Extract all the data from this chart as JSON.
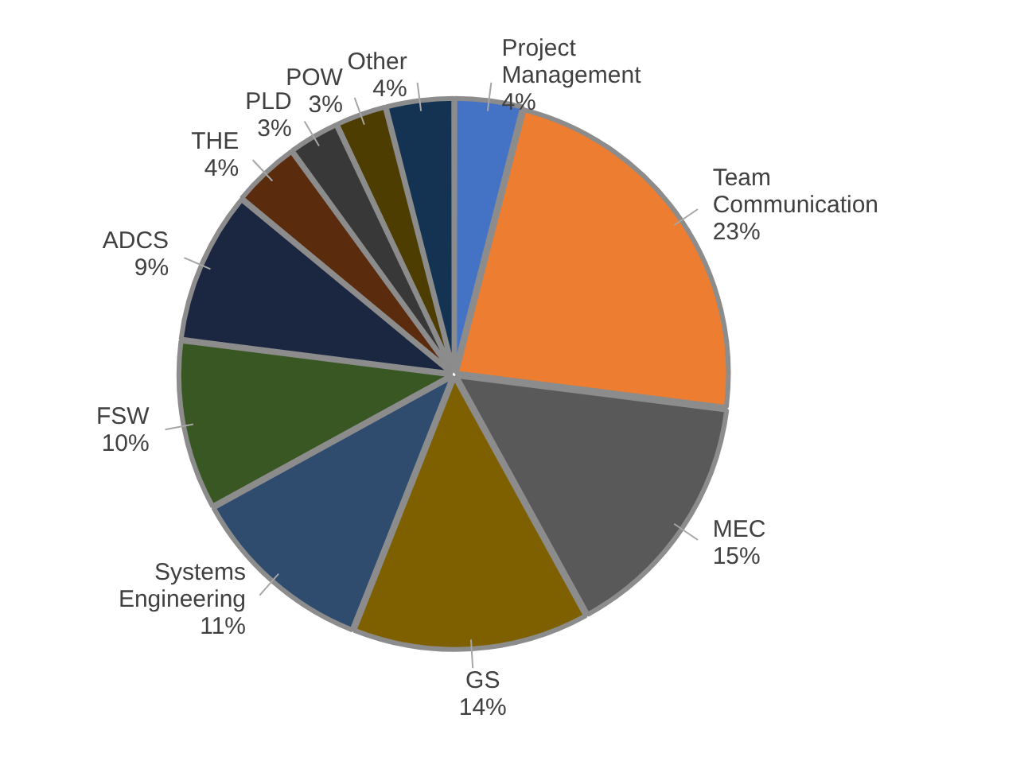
{
  "chart_data": {
    "type": "pie",
    "categories": [
      "Project Management",
      "Team Communication",
      "MEC",
      "GS",
      "Systems Engineering",
      "FSW",
      "ADCS",
      "THE",
      "PLD",
      "POW",
      "Other"
    ],
    "values": [
      4,
      23,
      15,
      14,
      11,
      10,
      9,
      4,
      3,
      3,
      4
    ],
    "value_labels": [
      "4%",
      "23%",
      "15%",
      "14%",
      "11%",
      "10%",
      "9%",
      "4%",
      "3%",
      "3%",
      "4%"
    ],
    "colors": [
      "#4472c4",
      "#ed7d31",
      "#595959",
      "#7f6000",
      "#2f4b6e",
      "#385723",
      "#1b2741",
      "#5b2b0d",
      "#383838",
      "#4d3d00",
      "#143352"
    ],
    "legend": false
  }
}
